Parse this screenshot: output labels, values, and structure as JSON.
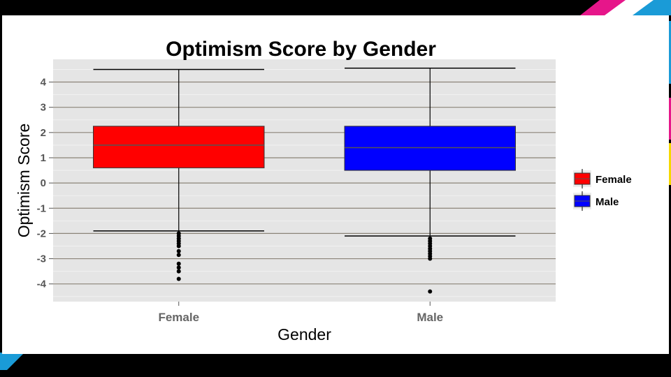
{
  "slide": {
    "accent_colors": [
      "#e6168a",
      "#1a9bd7",
      "#f5d800"
    ]
  },
  "chart_data": {
    "type": "boxplot",
    "title": "Optimism Score by Gender",
    "xlabel": "Gender",
    "ylabel": "Optimism Score",
    "ylim": [
      -4.7,
      4.9
    ],
    "yticks": [
      "4",
      "3",
      "2",
      "1",
      "0",
      "-1",
      "-2",
      "-3",
      "-4"
    ],
    "grid": true,
    "legend_position": "right",
    "categories": [
      "Female",
      "Male"
    ],
    "series": [
      {
        "name": "Female",
        "color": "#ff0000",
        "whisker_low": -1.9,
        "q1": 0.6,
        "median": 1.5,
        "q3": 2.25,
        "whisker_high": 4.5,
        "outliers": [
          -2.0,
          -2.1,
          -2.2,
          -2.3,
          -2.4,
          -2.5,
          -2.7,
          -2.85,
          -3.2,
          -3.35,
          -3.5,
          -3.8
        ]
      },
      {
        "name": "Male",
        "color": "#0000ff",
        "whisker_low": -2.1,
        "q1": 0.5,
        "median": 1.4,
        "q3": 2.25,
        "whisker_high": 4.55,
        "outliers": [
          -2.2,
          -2.3,
          -2.4,
          -2.5,
          -2.6,
          -2.7,
          -2.8,
          -2.9,
          -3.0,
          -4.3
        ]
      }
    ]
  }
}
